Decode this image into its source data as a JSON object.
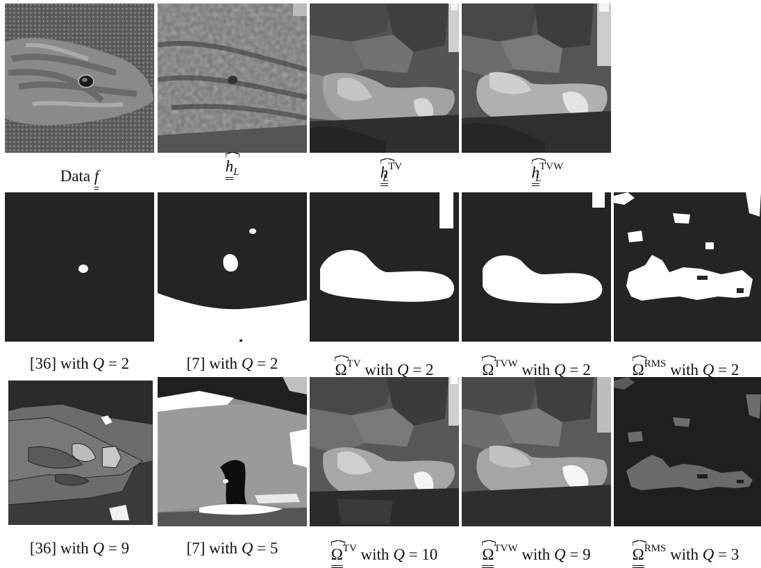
{
  "row1": {
    "captions": [
      {
        "pre": "Data",
        "sym": "f",
        "sup": "",
        "sub": ""
      },
      {
        "pre": "",
        "sym": "h",
        "sup": "",
        "sub": "L"
      },
      {
        "pre": "",
        "sym": "h",
        "sup": "TV",
        "sub": "L"
      },
      {
        "pre": "",
        "sym": "h",
        "sup": "TVW",
        "sub": "L"
      }
    ]
  },
  "row2": {
    "captions": [
      {
        "ref": "[36] with",
        "sym": "Q",
        "eq": "= 2"
      },
      {
        "ref": "[7] with",
        "sym": "Q",
        "eq": "= 2"
      },
      {
        "sym": "Ω",
        "sup": "TV",
        "with": "with",
        "q": "Q",
        "eq": "= 2"
      },
      {
        "sym": "Ω",
        "sup": "TVW",
        "with": "with",
        "q": "Q",
        "eq": "= 2"
      },
      {
        "sym": "Ω",
        "sup": "RMS",
        "with": "with",
        "q": "Q",
        "eq": "= 2"
      }
    ]
  },
  "row3": {
    "captions": [
      {
        "ref": "[36] with",
        "sym": "Q",
        "eq": "= 9"
      },
      {
        "ref": "[7] with",
        "sym": "Q",
        "eq": "= 5"
      },
      {
        "sym": "Ω",
        "sup": "TV",
        "with": "with",
        "q": "Q",
        "eq": "= 10"
      },
      {
        "sym": "Ω",
        "sup": "TVW",
        "with": "with",
        "q": "Q",
        "eq": "= 9"
      },
      {
        "sym": "Ω",
        "sup": "RMS",
        "with": "with",
        "q": "Q",
        "eq": "= 3"
      }
    ]
  }
}
